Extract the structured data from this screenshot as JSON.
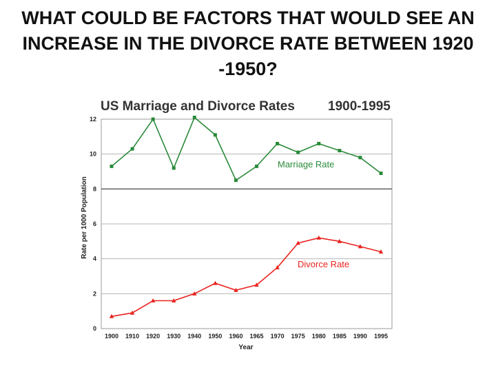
{
  "slide": {
    "title": "WHAT COULD BE FACTORS THAT WOULD SEE AN INCREASE IN THE DIVORCE RATE BETWEEN 1920 -1950?"
  },
  "chart_data": {
    "type": "line",
    "title": "US Marriage and Divorce Rates",
    "subtitle": "1900-1995",
    "xlabel": "Year",
    "ylabel": "Rate per 1000 Population",
    "x": [
      1900,
      1910,
      1920,
      1930,
      1940,
      1950,
      1960,
      1965,
      1970,
      1975,
      1980,
      1985,
      1990,
      1995
    ],
    "x_tick_labels": [
      "1900",
      "1910",
      "1920",
      "1930",
      "1940",
      "1950",
      "1960",
      "1965",
      "1970",
      "1975",
      "1980",
      "1985",
      "1990",
      "1995"
    ],
    "y_ticks": [
      0,
      2,
      4,
      6,
      8,
      10,
      12
    ],
    "ylim": [
      0,
      12
    ],
    "grid": true,
    "series": [
      {
        "name": "Marriage Rate",
        "color": "#2a8a3a",
        "marker": "square",
        "values": [
          9.3,
          10.3,
          12.0,
          9.2,
          12.1,
          11.1,
          8.5,
          9.3,
          10.6,
          10.1,
          10.6,
          10.2,
          9.8,
          8.9
        ]
      },
      {
        "name": "Divorce Rate",
        "color": "#e8231f",
        "marker": "triangle",
        "values": [
          0.7,
          0.9,
          1.6,
          1.6,
          2.0,
          2.6,
          2.2,
          2.5,
          3.5,
          4.9,
          5.2,
          5.0,
          4.7,
          4.4
        ]
      }
    ]
  }
}
